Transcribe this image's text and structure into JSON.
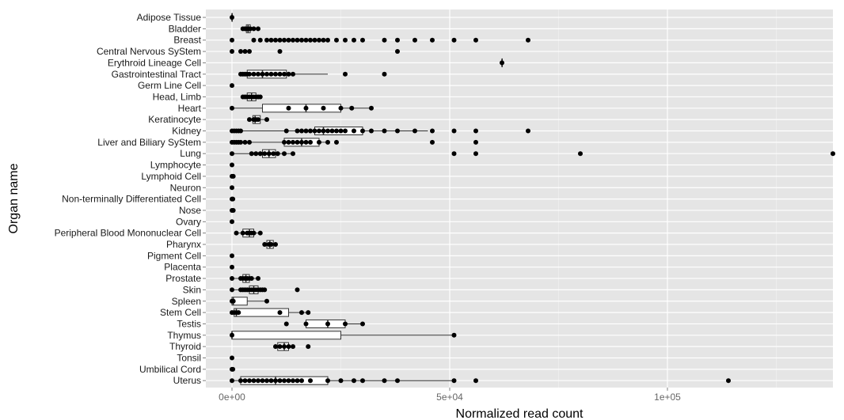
{
  "chart_data": {
    "type": "boxplot",
    "title": "",
    "xlabel": "Normalized read count",
    "ylabel": "Organ name",
    "xlim": [
      -6000,
      138000
    ],
    "x_ticks": [
      {
        "value": 0,
        "label": "0e+00"
      },
      {
        "value": 50000,
        "label": "5e+04"
      },
      {
        "value": 100000,
        "label": "1e+05"
      }
    ],
    "grid": true,
    "background": "#e5e5e5",
    "box_fill": "#ffffff",
    "point_color": "#000000",
    "categories": [
      {
        "name": "Adipose Tissue",
        "box": [
          0,
          0,
          0,
          0,
          0
        ],
        "points": [
          0
        ]
      },
      {
        "name": "Bladder",
        "box": [
          2500,
          3300,
          3700,
          4200,
          5000
        ],
        "points": [
          2500,
          3000,
          3300,
          3500,
          3700,
          4000,
          4200,
          5000,
          6000
        ]
      },
      {
        "name": "Breast",
        "box": null,
        "points": [
          0,
          5000,
          6500,
          8000,
          9000,
          10000,
          11000,
          12000,
          13000,
          14000,
          15000,
          16000,
          17000,
          18000,
          19000,
          20000,
          21000,
          22000,
          24000,
          26000,
          28000,
          30000,
          35000,
          38000,
          42000,
          46000,
          51000,
          56000,
          68000
        ]
      },
      {
        "name": "Central Nervous SyStem",
        "box": null,
        "points": [
          0,
          2000,
          3000,
          4000,
          11000,
          38000
        ]
      },
      {
        "name": "Erythroid Lineage Cell",
        "box": [
          62000,
          62000,
          62000,
          62000,
          62000
        ],
        "points": [
          62000
        ]
      },
      {
        "name": "Gastrointestinal Tract",
        "box": [
          2000,
          3500,
          7000,
          12500,
          22000
        ],
        "points": [
          2000,
          2500,
          3000,
          3500,
          4000,
          5000,
          6000,
          7000,
          8000,
          9000,
          10000,
          11000,
          12000,
          13000,
          14000,
          26000,
          35000
        ]
      },
      {
        "name": "Germ Line Cell",
        "box": null,
        "points": [
          0
        ]
      },
      {
        "name": "Head, Limb",
        "box": [
          2500,
          3500,
          4500,
          5500,
          6500
        ],
        "points": [
          2500,
          3000,
          3500,
          4000,
          4500,
          5000,
          5500,
          6000,
          6500
        ]
      },
      {
        "name": "Heart",
        "box": [
          0,
          7000,
          17000,
          25000,
          32000
        ],
        "points": [
          0,
          13000,
          17000,
          21000,
          25000,
          27500,
          32000
        ]
      },
      {
        "name": "Keratinocyte",
        "box": [
          4000,
          4800,
          5300,
          6500,
          8000
        ],
        "points": [
          4000,
          5000,
          5500,
          6000,
          8000
        ]
      },
      {
        "name": "Kidney",
        "box": [
          0,
          19000,
          21000,
          30000,
          45000
        ],
        "points": [
          0,
          500,
          1000,
          1500,
          2000,
          12500,
          15000,
          16000,
          17000,
          18000,
          19000,
          20000,
          21000,
          22000,
          23000,
          24000,
          25000,
          26000,
          28000,
          30000,
          32000,
          35000,
          38000,
          42000,
          46000,
          51000,
          56000,
          68000
        ]
      },
      {
        "name": "Liver and Biliary SyStem",
        "box": [
          0,
          12000,
          16000,
          20000,
          22000
        ],
        "points": [
          0,
          500,
          1000,
          1500,
          2000,
          3000,
          4000,
          12000,
          13000,
          14000,
          15000,
          16000,
          17000,
          18000,
          20000,
          22000,
          24000,
          46000,
          56000
        ]
      },
      {
        "name": "Lung",
        "box": [
          0,
          7000,
          8500,
          10000,
          14000
        ],
        "points": [
          0,
          4500,
          5500,
          6500,
          7500,
          8500,
          9500,
          10500,
          12000,
          14000,
          51000,
          56000,
          80000,
          138000
        ]
      },
      {
        "name": "Lymphocyte",
        "box": null,
        "points": [
          0
        ]
      },
      {
        "name": "Lymphoid Cell",
        "box": null,
        "points": [
          0,
          300
        ]
      },
      {
        "name": "Neuron",
        "box": null,
        "points": [
          0
        ]
      },
      {
        "name": "Non-terminally Differentiated Cell",
        "box": null,
        "points": [
          0,
          200
        ]
      },
      {
        "name": "Nose",
        "box": null,
        "points": [
          0,
          300
        ]
      },
      {
        "name": "Ovary",
        "box": null,
        "points": [
          0
        ]
      },
      {
        "name": "Peripheral Blood Mononuclear Cell",
        "box": [
          1000,
          2500,
          4000,
          5000,
          6500
        ],
        "points": [
          1000,
          2500,
          3500,
          4000,
          4500,
          5000,
          6500
        ]
      },
      {
        "name": "Pharynx",
        "box": [
          7500,
          8000,
          8700,
          9500,
          10000
        ],
        "points": [
          7500,
          8500,
          9000,
          10000
        ]
      },
      {
        "name": "Pigment Cell",
        "box": null,
        "points": [
          0
        ]
      },
      {
        "name": "Placenta",
        "box": null,
        "points": [
          0
        ]
      },
      {
        "name": "Prostate",
        "box": [
          0,
          2500,
          3200,
          4000,
          6000
        ],
        "points": [
          0,
          2000,
          2500,
          3000,
          3500,
          4000,
          4500,
          6000
        ]
      },
      {
        "name": "Skin",
        "box": [
          0,
          4000,
          5000,
          6000,
          7500
        ],
        "points": [
          0,
          2000,
          2500,
          3000,
          3500,
          4000,
          4500,
          5000,
          5500,
          6000,
          6500,
          7000,
          7500,
          15000
        ]
      },
      {
        "name": "Spleen",
        "box": [
          0,
          0,
          300,
          3500,
          8000
        ],
        "points": [
          0,
          300,
          8000
        ]
      },
      {
        "name": "Stem Cell",
        "box": [
          0,
          500,
          1000,
          13000,
          17500
        ],
        "points": [
          0,
          500,
          1000,
          1500,
          11000,
          16000,
          17500
        ]
      },
      {
        "name": "Testis",
        "box": [
          17000,
          17000,
          22000,
          26000,
          30000
        ],
        "points": [
          12500,
          17000,
          22000,
          26000,
          30000
        ]
      },
      {
        "name": "Thymus",
        "box": [
          0,
          0,
          0,
          25000,
          51000
        ],
        "points": [
          0,
          51000
        ]
      },
      {
        "name": "Thyroid",
        "box": [
          10000,
          10500,
          12000,
          13000,
          14000
        ],
        "points": [
          10000,
          11000,
          12000,
          13000,
          14000,
          17500
        ]
      },
      {
        "name": "Tonsil",
        "box": null,
        "points": [
          0
        ]
      },
      {
        "name": "Umbilical Cord",
        "box": null,
        "points": [
          0,
          200
        ]
      },
      {
        "name": "Uterus",
        "box": [
          0,
          2000,
          10000,
          22000,
          51000
        ],
        "points": [
          0,
          2000,
          3000,
          4000,
          5000,
          6000,
          7000,
          8000,
          9000,
          10000,
          11000,
          12000,
          13000,
          14000,
          15000,
          16000,
          18000,
          22000,
          25000,
          28000,
          30000,
          35000,
          38000,
          51000,
          56000,
          114000
        ]
      }
    ]
  }
}
